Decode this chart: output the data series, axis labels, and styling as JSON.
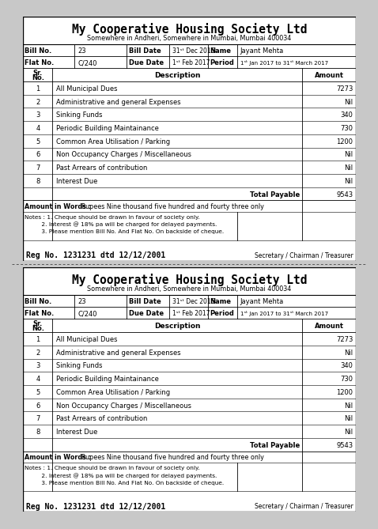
{
  "bg_color": "#c8c8c8",
  "page_bg": "#ffffff",
  "title": "My Cooperative Housing Society Ltd",
  "subtitle": "Somewhere in Andheri, Somewhere in Mumbai, Mumbai 400034",
  "bill_no": "23",
  "bill_date": "31st Dec 2016",
  "name": "Jayant Mehta",
  "flat_no": "C/240",
  "due_date": "1st Feb 2017",
  "period": "1st Jan 2017 to 31st March 2017",
  "items": [
    {
      "sr": "1",
      "desc": "All Municipal Dues",
      "amount": "7273"
    },
    {
      "sr": "2",
      "desc": "Administrative and general Expenses",
      "amount": "Nil"
    },
    {
      "sr": "3",
      "desc": "Sinking Funds",
      "amount": "340"
    },
    {
      "sr": "4",
      "desc": "Periodic Building Maintainance",
      "amount": "730"
    },
    {
      "sr": "5",
      "desc": "Common Area Utilisation / Parking",
      "amount": "1200"
    },
    {
      "sr": "6",
      "desc": "Non Occupancy Charges / Miscellaneous",
      "amount": "Nil"
    },
    {
      "sr": "7",
      "desc": "Past Arrears of contribution",
      "amount": "Nil"
    },
    {
      "sr": "8",
      "desc": "Interest Due",
      "amount": "Nil"
    }
  ],
  "total": "9543",
  "amount_in_words": "Rupees Nine thousand five hundred and fourty three only",
  "note1": "Notes : 1. Cheque should be drawn in favour of society only.",
  "note2": "         2. Interest @ 18% pa will be charged for delayed payments.",
  "note3": "         3. Please mention Bill No. And Flat No. On backside of cheque.",
  "reg_no": "Reg No. 1231231 dtd 12/12/2001",
  "signatory": "Secretary / Chairman / Treasurer"
}
